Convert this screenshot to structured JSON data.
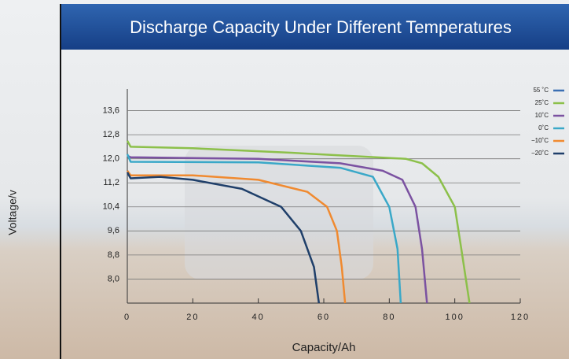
{
  "chart_data": {
    "type": "line",
    "title": "Discharge Capacity Under Different Temperatures",
    "x_label": "Capacity/Ah",
    "y_label": "Voltage/v",
    "xlim": [
      0,
      120
    ],
    "xticks": [
      0,
      20,
      40,
      60,
      80,
      100,
      120
    ],
    "ylim": [
      7.2,
      14.4
    ],
    "yticks": [
      {
        "value": 8.0,
        "label": "8,0"
      },
      {
        "value": 8.8,
        "label": "8,8"
      },
      {
        "value": 9.6,
        "label": "9,6"
      },
      {
        "value": 10.4,
        "label": "10,4"
      },
      {
        "value": 11.2,
        "label": "11,2"
      },
      {
        "value": 12.0,
        "label": "12,0"
      },
      {
        "value": 12.8,
        "label": "12,8"
      },
      {
        "value": 13.6,
        "label": "13,6"
      }
    ],
    "grid": true,
    "legend": "upper right",
    "series": [
      {
        "name": "55 ˚C",
        "color": "#3b6fb3",
        "x": [],
        "values": []
      },
      {
        "name": "25˚C",
        "color": "#8cc04a",
        "x": [
          0,
          1,
          20,
          50,
          85,
          90,
          95,
          100,
          102,
          104.5
        ],
        "values": [
          12.6,
          12.4,
          12.35,
          12.2,
          12.0,
          11.85,
          11.4,
          10.4,
          9.0,
          7.2
        ]
      },
      {
        "name": "10˚C",
        "color": "#7b52a1",
        "x": [
          0,
          1,
          40,
          65,
          78,
          84,
          88,
          90,
          91.5
        ],
        "values": [
          12.1,
          12.05,
          12.0,
          11.85,
          11.6,
          11.3,
          10.4,
          9.0,
          7.2
        ]
      },
      {
        "name": "0˚C",
        "color": "#3aa8c8",
        "x": [
          0,
          1,
          40,
          65,
          75,
          80,
          82.5,
          83.5
        ],
        "values": [
          12.15,
          11.9,
          11.88,
          11.7,
          11.4,
          10.4,
          9.0,
          7.2
        ]
      },
      {
        "name": "−10˚C",
        "color": "#f08a30",
        "x": [
          0,
          1,
          20,
          40,
          55,
          61,
          64,
          65.5,
          66.5
        ],
        "values": [
          11.6,
          11.45,
          11.45,
          11.3,
          10.9,
          10.4,
          9.6,
          8.4,
          7.2
        ]
      },
      {
        "name": "−20˚C",
        "color": "#1f3f6a",
        "x": [
          0,
          1,
          10,
          20,
          35,
          47,
          53,
          57,
          58.5
        ],
        "values": [
          11.55,
          11.35,
          11.4,
          11.3,
          11.0,
          10.4,
          9.6,
          8.4,
          7.2
        ]
      }
    ]
  }
}
